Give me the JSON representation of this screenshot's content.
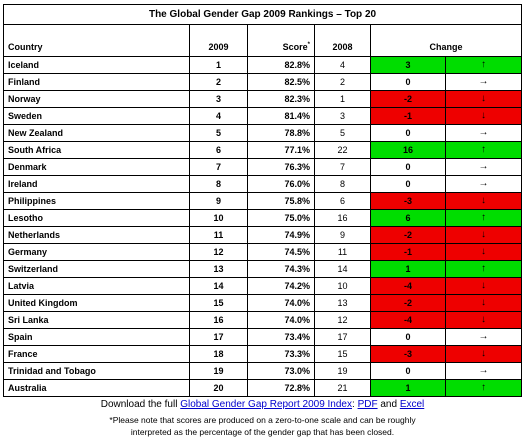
{
  "chart_data": {
    "type": "table",
    "title": "The Global Gender Gap 2009 Rankings – Top 20",
    "columns": {
      "country": "Country",
      "rank_2009": "2009",
      "score": "Score",
      "score_marker": "*",
      "rank_2008": "2008",
      "change": "Change"
    },
    "rows": [
      {
        "country": "Iceland",
        "rank_2009": "1",
        "score": "82.8%",
        "rank_2008": "4",
        "change": "3",
        "direction": "up",
        "arrow": "↑"
      },
      {
        "country": "Finland",
        "rank_2009": "2",
        "score": "82.5%",
        "rank_2008": "2",
        "change": "0",
        "direction": "same",
        "arrow": "→"
      },
      {
        "country": "Norway",
        "rank_2009": "3",
        "score": "82.3%",
        "rank_2008": "1",
        "change": "-2",
        "direction": "down",
        "arrow": "↓"
      },
      {
        "country": "Sweden",
        "rank_2009": "4",
        "score": "81.4%",
        "rank_2008": "3",
        "change": "-1",
        "direction": "down",
        "arrow": "↓"
      },
      {
        "country": "New Zealand",
        "rank_2009": "5",
        "score": "78.8%",
        "rank_2008": "5",
        "change": "0",
        "direction": "same",
        "arrow": "→"
      },
      {
        "country": "South Africa",
        "rank_2009": "6",
        "score": "77.1%",
        "rank_2008": "22",
        "change": "16",
        "direction": "up",
        "arrow": "↑"
      },
      {
        "country": "Denmark",
        "rank_2009": "7",
        "score": "76.3%",
        "rank_2008": "7",
        "change": "0",
        "direction": "same",
        "arrow": "→"
      },
      {
        "country": "Ireland",
        "rank_2009": "8",
        "score": "76.0%",
        "rank_2008": "8",
        "change": "0",
        "direction": "same",
        "arrow": "→"
      },
      {
        "country": "Philippines",
        "rank_2009": "9",
        "score": "75.8%",
        "rank_2008": "6",
        "change": "-3",
        "direction": "down",
        "arrow": "↓"
      },
      {
        "country": "Lesotho",
        "rank_2009": "10",
        "score": "75.0%",
        "rank_2008": "16",
        "change": "6",
        "direction": "up",
        "arrow": "↑"
      },
      {
        "country": "Netherlands",
        "rank_2009": "11",
        "score": "74.9%",
        "rank_2008": "9",
        "change": "-2",
        "direction": "down",
        "arrow": "↓"
      },
      {
        "country": "Germany",
        "rank_2009": "12",
        "score": "74.5%",
        "rank_2008": "11",
        "change": "-1",
        "direction": "down",
        "arrow": "↓"
      },
      {
        "country": "Switzerland",
        "rank_2009": "13",
        "score": "74.3%",
        "rank_2008": "14",
        "change": "1",
        "direction": "up",
        "arrow": "↑"
      },
      {
        "country": "Latvia",
        "rank_2009": "14",
        "score": "74.2%",
        "rank_2008": "10",
        "change": "-4",
        "direction": "down",
        "arrow": "↓"
      },
      {
        "country": "United Kingdom",
        "rank_2009": "15",
        "score": "74.0%",
        "rank_2008": "13",
        "change": "-2",
        "direction": "down",
        "arrow": "↓"
      },
      {
        "country": "Sri Lanka",
        "rank_2009": "16",
        "score": "74.0%",
        "rank_2008": "12",
        "change": "-4",
        "direction": "down",
        "arrow": "↓"
      },
      {
        "country": "Spain",
        "rank_2009": "17",
        "score": "73.4%",
        "rank_2008": "17",
        "change": "0",
        "direction": "same",
        "arrow": "→"
      },
      {
        "country": "France",
        "rank_2009": "18",
        "score": "73.3%",
        "rank_2008": "15",
        "change": "-3",
        "direction": "down",
        "arrow": "↓"
      },
      {
        "country": "Trinidad and Tobago",
        "rank_2009": "19",
        "score": "73.0%",
        "rank_2008": "19",
        "change": "0",
        "direction": "same",
        "arrow": "→"
      },
      {
        "country": "Australia",
        "rank_2009": "20",
        "score": "72.8%",
        "rank_2008": "21",
        "change": "1",
        "direction": "up",
        "arrow": "↑"
      }
    ],
    "colors": {
      "up": "#00dd00",
      "down": "#ee0000",
      "same": "#ffffff",
      "link": "#0000cc"
    }
  },
  "footer": {
    "download_prefix": "Download the full ",
    "report_link": "Global Gender Gap Report 2009 Index",
    "sep1": ": ",
    "pdf_link": "PDF",
    "and_text": " and ",
    "excel_link": "Excel",
    "note_line1": "*Please note that scores are produced on a zero-to-one scale and can be roughly",
    "note_line2": "interpreted as the percentage of the gender gap that has been closed."
  }
}
